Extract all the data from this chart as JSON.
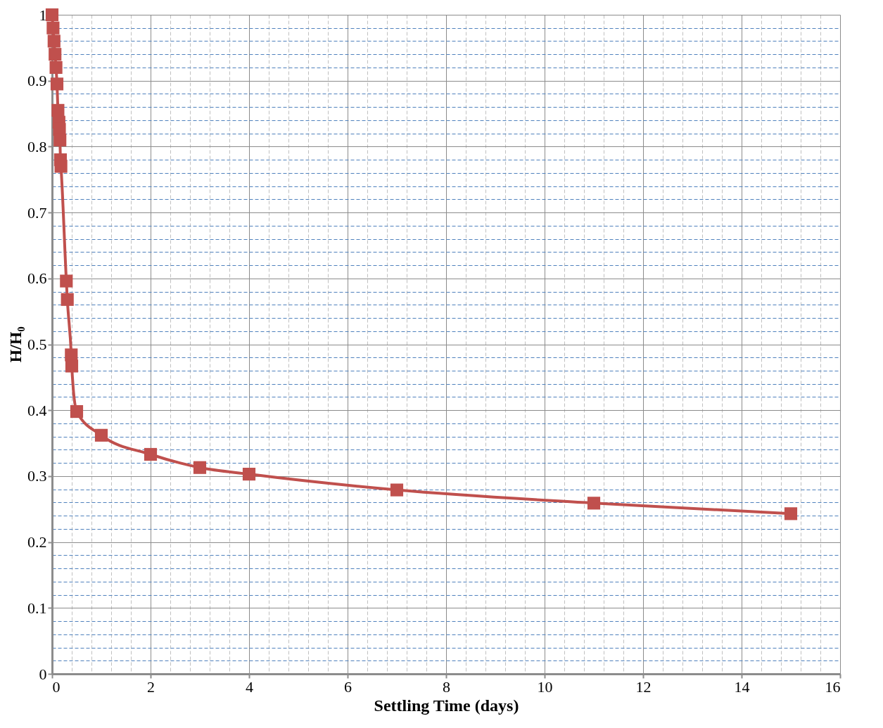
{
  "chart_data": {
    "type": "line",
    "xlabel": "Settling Time (days)",
    "ylabel": "H/H₀",
    "x": [
      0,
      0.02,
      0.04,
      0.06,
      0.08,
      0.1,
      0.12,
      0.14,
      0.15,
      0.16,
      0.17,
      0.18,
      0.29,
      0.31,
      0.39,
      0.4,
      0.5,
      1,
      2,
      3,
      4,
      7,
      11,
      15
    ],
    "series": [
      {
        "color": "#c0504d",
        "values": [
          1.0,
          0.98,
          0.96,
          0.94,
          0.92,
          0.895,
          0.855,
          0.837,
          0.826,
          0.81,
          0.78,
          0.77,
          0.596,
          0.568,
          0.484,
          0.467,
          0.398,
          0.362,
          0.333,
          0.313,
          0.303,
          0.279,
          0.259,
          0.243
        ]
      }
    ],
    "xlim": [
      0,
      16
    ],
    "ylim": [
      0,
      1
    ],
    "xticks": [
      0,
      {
        "value": 0.4,
        "label": null
      },
      {
        "value": 0.8,
        "label": null
      },
      {
        "value": 1.2,
        "label": null
      },
      {
        "value": 1.6,
        "label": null
      },
      2,
      {
        "value": 2.4,
        "label": null
      },
      {
        "value": 2.8,
        "label": null
      },
      {
        "value": 3.2,
        "label": null
      },
      {
        "value": 3.6,
        "label": null
      },
      4,
      {
        "value": 4.4,
        "label": null
      },
      {
        "value": 4.8,
        "label": null
      },
      {
        "value": 5.2,
        "label": null
      },
      {
        "value": 5.6,
        "label": null
      },
      6,
      {
        "value": 6.4,
        "label": null
      },
      {
        "value": 6.8,
        "label": null
      },
      {
        "value": 7.2,
        "label": null
      },
      {
        "value": 7.6,
        "label": null
      },
      8,
      {
        "value": 8.4,
        "label": null
      },
      {
        "value": 8.8,
        "label": null
      },
      {
        "value": 9.2,
        "label": null
      },
      {
        "value": 9.6,
        "label": null
      },
      10,
      {
        "value": 10.4,
        "label": null
      },
      {
        "value": 10.8,
        "label": null
      },
      {
        "value": 11.2,
        "label": null
      },
      {
        "value": 11.6,
        "label": null
      },
      12,
      {
        "value": 12.4,
        "label": null
      },
      {
        "value": 12.8,
        "label": null
      },
      {
        "value": 13.2,
        "label": null
      },
      {
        "value": 13.6,
        "label": null
      },
      14,
      {
        "value": 14.4,
        "label": null
      },
      {
        "value": 14.8,
        "label": null
      },
      {
        "value": 15.2,
        "label": null
      },
      {
        "value": 15.6,
        "label": null
      },
      16
    ],
    "yticks": [
      0,
      {
        "value": 0.02,
        "label": null
      },
      {
        "value": 0.04,
        "label": null
      },
      {
        "value": 0.06,
        "label": null
      },
      {
        "value": 0.08,
        "label": null
      },
      0.1,
      {
        "value": 0.12,
        "label": null
      },
      {
        "value": 0.14,
        "label": null
      },
      {
        "value": 0.16,
        "label": null
      },
      {
        "value": 0.18,
        "label": null
      },
      0.2,
      {
        "value": 0.22,
        "label": null
      },
      {
        "value": 0.24,
        "label": null
      },
      {
        "value": 0.26,
        "label": null
      },
      {
        "value": 0.28,
        "label": null
      },
      0.3,
      {
        "value": 0.32,
        "label": null
      },
      {
        "value": 0.34,
        "label": null
      },
      {
        "value": 0.36,
        "label": null
      },
      {
        "value": 0.38,
        "label": null
      },
      0.4,
      {
        "value": 0.42,
        "label": null
      },
      {
        "value": 0.44,
        "label": null
      },
      {
        "value": 0.46,
        "label": null
      },
      {
        "value": 0.48,
        "label": null
      },
      0.5,
      {
        "value": 0.52,
        "label": null
      },
      {
        "value": 0.54,
        "label": null
      },
      {
        "value": 0.56,
        "label": null
      },
      {
        "value": 0.58,
        "label": null
      },
      0.6,
      {
        "value": 0.62,
        "label": null
      },
      {
        "value": 0.64,
        "label": null
      },
      {
        "value": 0.66,
        "label": null
      },
      {
        "value": 0.68,
        "label": null
      },
      0.7,
      {
        "value": 0.72,
        "label": null
      },
      {
        "value": 0.74,
        "label": null
      },
      {
        "value": 0.76,
        "label": null
      },
      {
        "value": 0.78,
        "label": null
      },
      0.8,
      {
        "value": 0.82,
        "label": null
      },
      {
        "value": 0.84,
        "label": null
      },
      {
        "value": 0.86,
        "label": null
      },
      {
        "value": 0.88,
        "label": null
      },
      0.9,
      {
        "value": 0.92,
        "label": null
      },
      {
        "value": 0.94,
        "label": null
      },
      {
        "value": 0.96,
        "label": null
      },
      {
        "value": 0.98,
        "label": null
      },
      1
    ],
    "grid": true,
    "marker": "square",
    "line_style": "solid"
  }
}
